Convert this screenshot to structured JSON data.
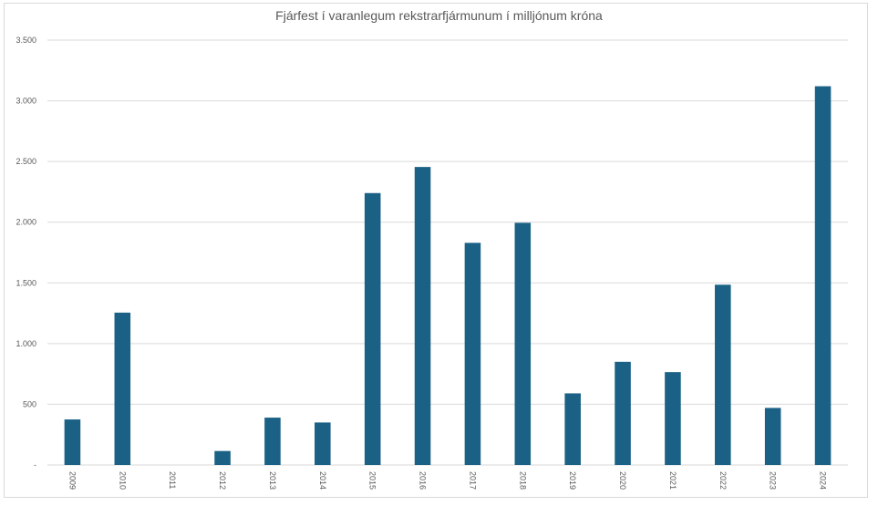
{
  "chart_data": {
    "type": "bar",
    "title": "Fjárfest í varanlegum rekstrarfjármunum í milljónum króna",
    "xlabel": "",
    "ylabel": "",
    "categories": [
      "2009",
      "2010",
      "2011",
      "2012",
      "2013",
      "2014",
      "2015",
      "2016",
      "2017",
      "2018",
      "2019",
      "2020",
      "2021",
      "2022",
      "2023",
      "2024"
    ],
    "values": [
      375,
      1255,
      0,
      115,
      390,
      350,
      2240,
      2455,
      1830,
      1995,
      590,
      850,
      765,
      1485,
      470,
      3120
    ],
    "ylim": [
      0,
      3500
    ],
    "y_ticks": [
      {
        "value": 0,
        "label": "-"
      },
      {
        "value": 500,
        "label": "500"
      },
      {
        "value": 1000,
        "label": "1.000"
      },
      {
        "value": 1500,
        "label": "1.500"
      },
      {
        "value": 2000,
        "label": "2.000"
      },
      {
        "value": 2500,
        "label": "2.500"
      },
      {
        "value": 3000,
        "label": "3.000"
      },
      {
        "value": 3500,
        "label": "3.500"
      }
    ],
    "grid": true,
    "legend": "none",
    "bar_color": "#1a6185",
    "grid_color": "#d9d9d9"
  }
}
